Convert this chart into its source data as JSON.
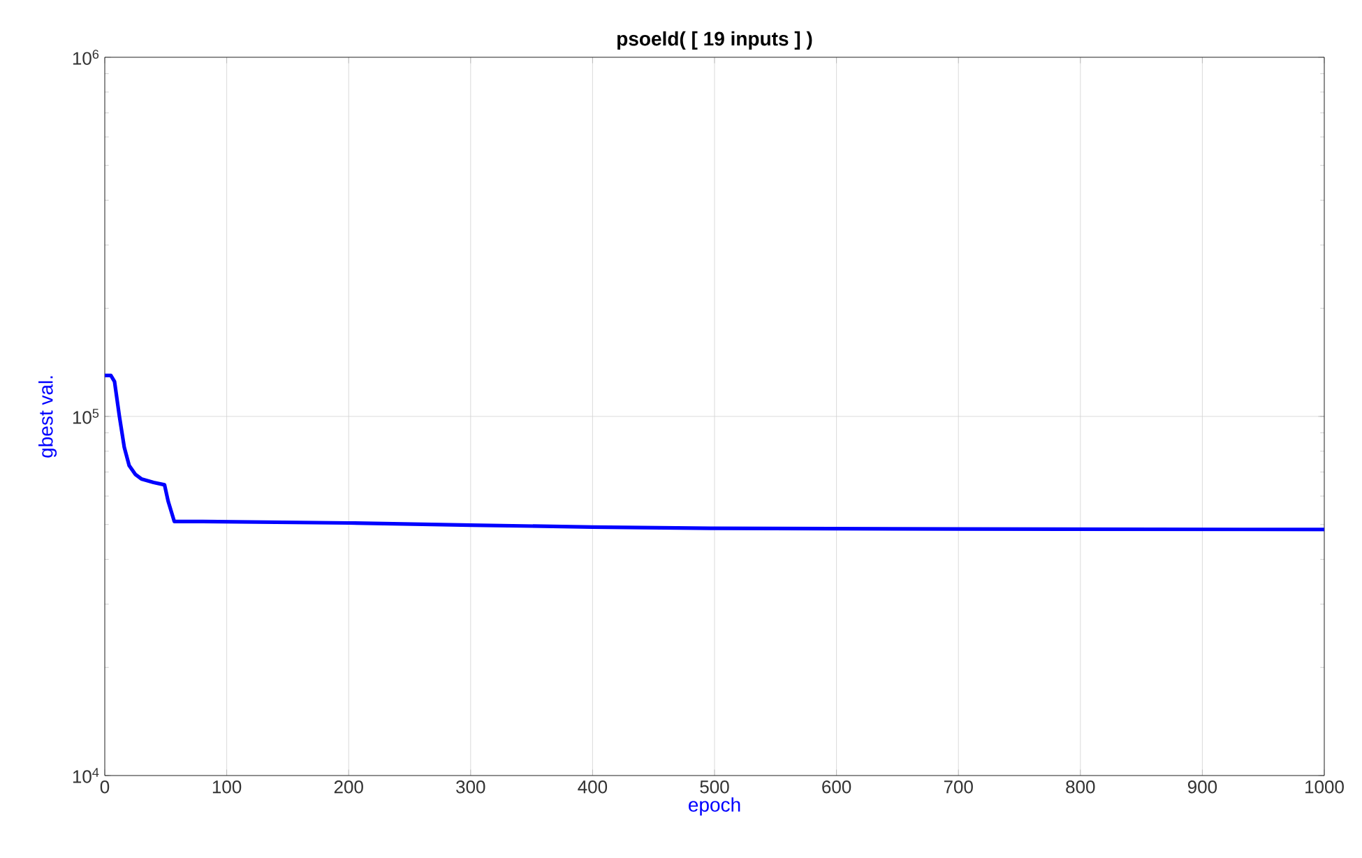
{
  "chart_data": {
    "type": "line",
    "title": "psoeld( [ 19 inputs ] )",
    "xlabel": "epoch",
    "ylabel": "gbest val.",
    "log": "y",
    "grid": true,
    "marker": "none",
    "line_style": "solid",
    "xlim": [
      0,
      1000
    ],
    "xticks": [
      0,
      100,
      200,
      300,
      400,
      500,
      600,
      700,
      800,
      900,
      1000
    ],
    "ylim": [
      10000,
      1000000
    ],
    "yticks": [
      {
        "value": 10000,
        "label": "10$^{4}$"
      },
      {
        "value": 100000,
        "label": "10$^{5}$"
      },
      {
        "value": 1000000,
        "label": "10$^{6}$"
      }
    ],
    "series": [
      {
        "color": "#0000ff",
        "x": [
          0,
          5,
          8,
          12,
          16,
          20,
          25,
          30,
          40,
          49,
          52,
          57,
          80,
          200,
          300,
          400,
          500,
          700,
          1000
        ],
        "values": [
          130000,
          130000,
          125000,
          100000,
          82000,
          73000,
          69000,
          67000,
          65500,
          64500,
          58000,
          51000,
          51000,
          50500,
          49800,
          49200,
          48800,
          48600,
          48400
        ]
      }
    ]
  }
}
